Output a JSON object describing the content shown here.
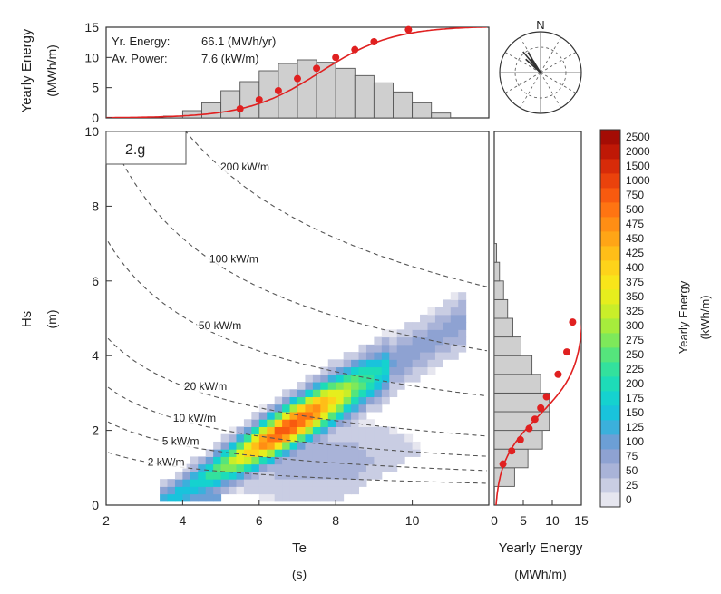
{
  "chart_data": [
    {
      "type": "heatmap",
      "panel_label": "2.g",
      "xlabel": "Te",
      "xunit": "(s)",
      "ylabel": "Hs",
      "yunit": "(m)",
      "xlim": [
        2,
        12
      ],
      "ylim": [
        0,
        10
      ],
      "xticks": [
        2,
        4,
        6,
        8,
        10
      ],
      "yticks": [
        0,
        2,
        4,
        6,
        8,
        10
      ],
      "power_contours": [
        {
          "label": "2 kW/m",
          "kw": 2
        },
        {
          "label": "5 kW/m",
          "kw": 5
        },
        {
          "label": "10 kW/m",
          "kw": 10
        },
        {
          "label": "20 kW/m",
          "kw": 20
        },
        {
          "label": "50 kW/m",
          "kw": 50
        },
        {
          "label": "100 kW/m",
          "kw": 100
        },
        {
          "label": "200 kW/m",
          "kw": 200
        }
      ],
      "colorbar": {
        "title": "Yearly Energy",
        "unit": "(kWh/m)",
        "levels": [
          "0",
          "25",
          "50",
          "75",
          "100",
          "125",
          "150",
          "175",
          "200",
          "225",
          "250",
          "275",
          "300",
          "325",
          "350",
          "375",
          "400",
          "425",
          "450",
          "475",
          "500",
          "750",
          "1000",
          "1500",
          "2000",
          "2500"
        ],
        "colors": [
          "#e6e6ef",
          "#c9cde3",
          "#a9b3d8",
          "#8ea2d2",
          "#6c9fd6",
          "#3bb0dc",
          "#19c3dc",
          "#15d2cf",
          "#1ddcb8",
          "#33e19d",
          "#55e57c",
          "#7ee95a",
          "#a6ec3c",
          "#c9ee29",
          "#e6ee1d",
          "#f8e51a",
          "#fdd31a",
          "#ffbe18",
          "#ffa516",
          "#ff8e14",
          "#ff7412",
          "#f85a0f",
          "#ea420c",
          "#d72b09",
          "#bf1806",
          "#a40c04"
        ]
      }
    },
    {
      "type": "bar",
      "panel": "top-marginal",
      "ylabel": "Yearly Energy",
      "yunit": "(MWh/m)",
      "ylim": [
        0,
        15
      ],
      "yticks": [
        0,
        5,
        10,
        15
      ],
      "annotations": [
        {
          "label": "Yr. Energy:",
          "value": "66.1 (MWh/yr)"
        },
        {
          "label": "Av. Power:",
          "value": "7.6 (kW/m)"
        }
      ],
      "bins_te": [
        [
          3.5,
          4
        ],
        [
          4,
          4.5
        ],
        [
          4.5,
          5
        ],
        [
          5,
          5.5
        ],
        [
          5.5,
          6
        ],
        [
          6,
          6.5
        ],
        [
          6.5,
          7
        ],
        [
          7,
          7.5
        ],
        [
          7.5,
          8
        ],
        [
          8,
          8.5
        ],
        [
          8.5,
          9
        ],
        [
          9,
          9.5
        ],
        [
          9.5,
          10
        ],
        [
          10,
          10.5
        ],
        [
          10.5,
          11
        ]
      ],
      "values": [
        0.3,
        1.2,
        2.5,
        4.5,
        6.0,
        7.8,
        9.0,
        9.6,
        9.2,
        8.2,
        7.0,
        5.8,
        4.3,
        2.5,
        0.8
      ],
      "cumulative_line_color": "#e02020",
      "cumulative_points": [
        [
          5.5,
          1.5
        ],
        [
          6.0,
          3.0
        ],
        [
          6.5,
          4.5
        ],
        [
          7.0,
          6.5
        ],
        [
          7.5,
          8.2
        ],
        [
          8.0,
          10.0
        ],
        [
          8.5,
          11.3
        ],
        [
          9.0,
          12.6
        ],
        [
          9.9,
          14.6
        ]
      ]
    },
    {
      "type": "bar",
      "panel": "right-marginal",
      "xlabel": "Yearly Energy",
      "xunit": "(MWh/m)",
      "xlim": [
        0,
        15
      ],
      "xticks": [
        0,
        5,
        10,
        15
      ],
      "bins_hs": [
        [
          0.5,
          1
        ],
        [
          1,
          1.5
        ],
        [
          1.5,
          2
        ],
        [
          2,
          2.5
        ],
        [
          2.5,
          3
        ],
        [
          3,
          3.5
        ],
        [
          3.5,
          4
        ],
        [
          4,
          4.5
        ],
        [
          4.5,
          5
        ],
        [
          5,
          5.5
        ],
        [
          5.5,
          6
        ],
        [
          6,
          6.5
        ],
        [
          6.5,
          7
        ]
      ],
      "values": [
        3.5,
        5.8,
        8.3,
        9.5,
        9.5,
        8.0,
        6.5,
        4.6,
        3.2,
        2.3,
        1.6,
        0.9,
        0.4
      ],
      "cumulative_line_color": "#e02020",
      "cumulative_points": [
        [
          1.5,
          1.1
        ],
        [
          3.0,
          1.45
        ],
        [
          4.5,
          1.75
        ],
        [
          6.0,
          2.05
        ],
        [
          7.0,
          2.3
        ],
        [
          8.0,
          2.6
        ],
        [
          9.0,
          2.9
        ],
        [
          11.0,
          3.5
        ],
        [
          12.5,
          4.1
        ],
        [
          13.5,
          4.9
        ]
      ]
    },
    {
      "type": "rose",
      "panel": "direction-rose",
      "north_label": "N"
    }
  ]
}
